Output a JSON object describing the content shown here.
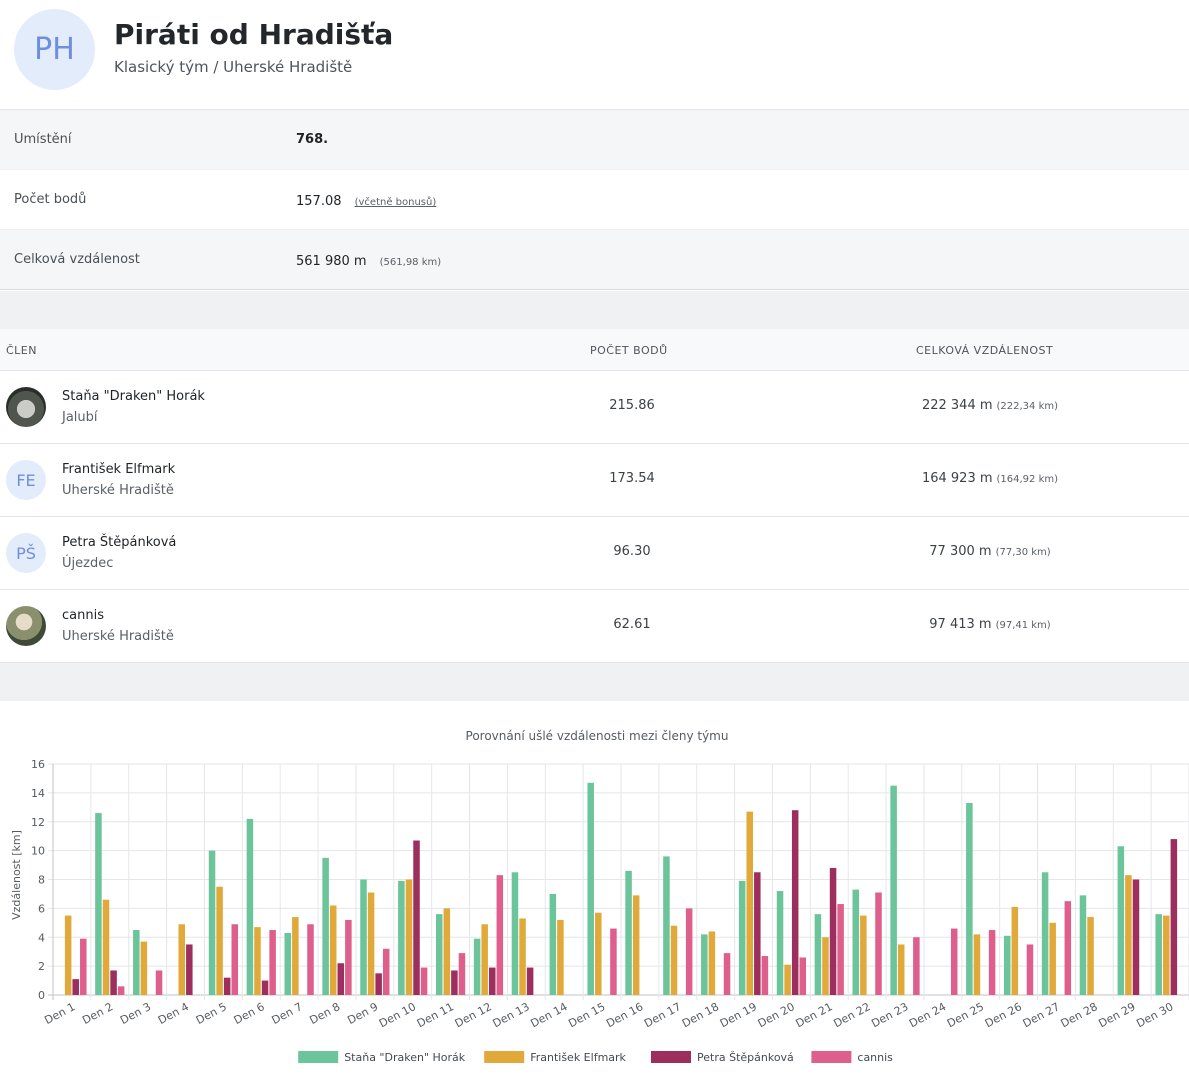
{
  "team": {
    "initials": "PH",
    "name": "Piráti od Hradišťa",
    "subtitle": "Klasický tým / Uherské Hradiště"
  },
  "stats": {
    "rank_label": "Umístění",
    "rank_value": "768.",
    "points_label": "Počet bodů",
    "points_value": "157.08",
    "points_note": "(včetně bonusů)",
    "distance_label": "Celková vzdálenost",
    "distance_value": "561 980 m",
    "distance_note": "(561,98 km)"
  },
  "members_table": {
    "col_member": "ČLEN",
    "col_points": "POČET BODŮ",
    "col_distance": "CELKOVÁ VZDÁLENOST",
    "rows": [
      {
        "name": "Staňa \"Draken\" Horák",
        "town": "Jalubí",
        "avatar": "",
        "points": "215.86",
        "distance": "222 344 m",
        "distance_km": "(222,34 km)"
      },
      {
        "name": "František Elfmark",
        "town": "Uherské Hradiště",
        "avatar": "FE",
        "points": "173.54",
        "distance": "164 923 m",
        "distance_km": "(164,92 km)"
      },
      {
        "name": "Petra Štěpánková",
        "town": "Újezdec",
        "avatar": "PŠ",
        "points": "96.30",
        "distance": "77 300 m",
        "distance_km": "(77,30 km)"
      },
      {
        "name": "cannis",
        "town": "Uherské Hradiště",
        "avatar": "",
        "points": "62.61",
        "distance": "97 413 m",
        "distance_km": "(97,41 km)"
      }
    ]
  },
  "chart_data": {
    "type": "bar",
    "title": "Porovnání ušlé vzdálenosti mezi členy týmu",
    "ylabel": "Vzdálenost [km]",
    "xlabel": "",
    "ylim": [
      0,
      16
    ],
    "yticks": [
      0,
      2,
      4,
      6,
      8,
      10,
      12,
      14,
      16
    ],
    "grid": true,
    "legend": "bottom",
    "categories": [
      "Den 1",
      "Den 2",
      "Den 3",
      "Den 4",
      "Den 5",
      "Den 6",
      "Den 7",
      "Den 8",
      "Den 9",
      "Den 10",
      "Den 11",
      "Den 12",
      "Den 13",
      "Den 14",
      "Den 15",
      "Den 16",
      "Den 17",
      "Den 18",
      "Den 19",
      "Den 20",
      "Den 21",
      "Den 22",
      "Den 23",
      "Den 24",
      "Den 25",
      "Den 26",
      "Den 27",
      "Den 28",
      "Den 29",
      "Den 30"
    ],
    "series": [
      {
        "name": "Staňa \"Draken\" Horák",
        "color": "#6cc49a",
        "values": [
          0,
          12.6,
          4.5,
          0,
          10.0,
          12.2,
          4.3,
          9.5,
          8.0,
          7.9,
          5.6,
          3.9,
          8.5,
          7.0,
          14.7,
          8.6,
          9.6,
          4.2,
          7.9,
          7.2,
          5.6,
          7.3,
          14.5,
          0,
          13.3,
          4.1,
          8.5,
          6.9,
          10.3,
          5.6
        ]
      },
      {
        "name": "František Elfmark",
        "color": "#e0a93a",
        "values": [
          5.5,
          6.6,
          3.7,
          4.9,
          7.5,
          4.7,
          5.4,
          6.2,
          7.1,
          8.0,
          6.0,
          4.9,
          5.3,
          5.2,
          5.7,
          6.9,
          4.8,
          4.4,
          12.7,
          2.1,
          4.0,
          5.5,
          3.5,
          0,
          4.2,
          6.1,
          5.0,
          5.4,
          8.3,
          5.5
        ]
      },
      {
        "name": "Petra Štěpánková",
        "color": "#9c2f5e",
        "values": [
          1.1,
          1.7,
          0,
          3.5,
          1.2,
          1.0,
          0,
          2.2,
          1.5,
          10.7,
          1.7,
          1.9,
          1.9,
          0,
          0,
          0,
          0,
          0,
          8.5,
          12.8,
          8.8,
          0,
          0,
          0,
          0,
          0,
          0,
          0,
          8.0,
          10.8
        ]
      },
      {
        "name": "cannis",
        "color": "#de5f8c",
        "values": [
          3.9,
          0.6,
          1.7,
          0,
          4.9,
          4.5,
          4.9,
          5.2,
          3.2,
          1.9,
          2.9,
          8.3,
          0,
          0,
          4.6,
          0,
          6.0,
          2.9,
          2.7,
          2.6,
          6.3,
          7.1,
          4.0,
          4.6,
          4.5,
          3.5,
          6.5,
          0,
          0,
          0
        ]
      }
    ]
  }
}
